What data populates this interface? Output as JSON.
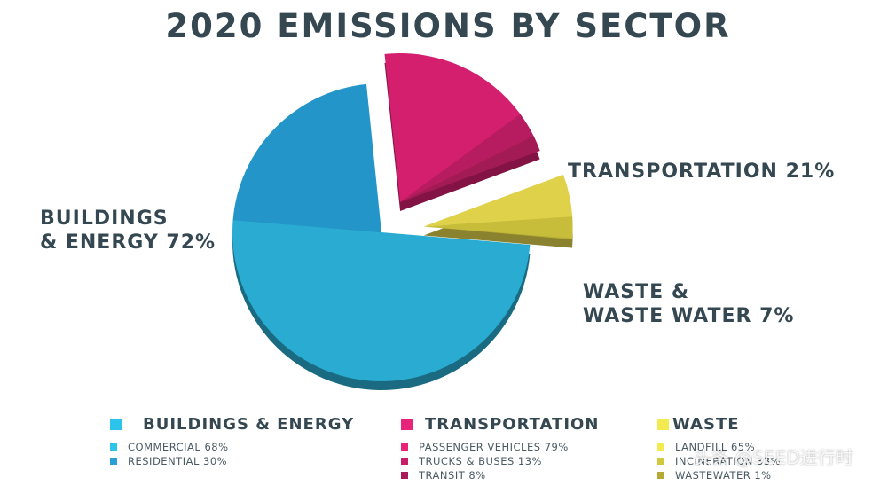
{
  "chart_data": {
    "type": "pie",
    "title": "2020 EMISSIONS BY SECTOR",
    "sectors": [
      {
        "name": "BUILDINGS & ENERGY",
        "callout_line1": "BUILDINGS",
        "callout_line2": "& ENERGY 72%",
        "value": 72,
        "color": "#2aacd2",
        "subcategories": [
          {
            "label": "COMMERCIAL 68%",
            "value": 68,
            "color": "#2aacd2"
          },
          {
            "label": "RESIDENTIAL 30%",
            "value": 30,
            "color": "#2495c9"
          }
        ]
      },
      {
        "name": "TRANSPORTATION",
        "callout_line1": "TRANSPORTATION 21%",
        "callout_line2": "",
        "value": 21,
        "color": "#d31f6e",
        "subcategories": [
          {
            "label": "PASSENGER VEHICLES 79%",
            "value": 79,
            "color": "#d31f6e"
          },
          {
            "label": "TRUCKS & BUSES 13%",
            "value": 13,
            "color": "#b81c60"
          },
          {
            "label": "TRANSIT 8%",
            "value": 8,
            "color": "#a31b55"
          }
        ]
      },
      {
        "name": "WASTE",
        "callout_line1": "WASTE &",
        "callout_line2": "WASTE WATER 7%",
        "value": 7,
        "color": "#dfd24a",
        "subcategories": [
          {
            "label": "LANDFILL 65%",
            "value": 65,
            "color": "#dfd24a"
          },
          {
            "label": "INCINERATION 33%",
            "value": 33,
            "color": "#c8bd3a"
          },
          {
            "label": "WASTEWATER 1%",
            "value": 1,
            "color": "#b3a935"
          }
        ]
      }
    ],
    "legend": {
      "position": "bottom"
    }
  },
  "watermark": "头条 @SEED进行时"
}
